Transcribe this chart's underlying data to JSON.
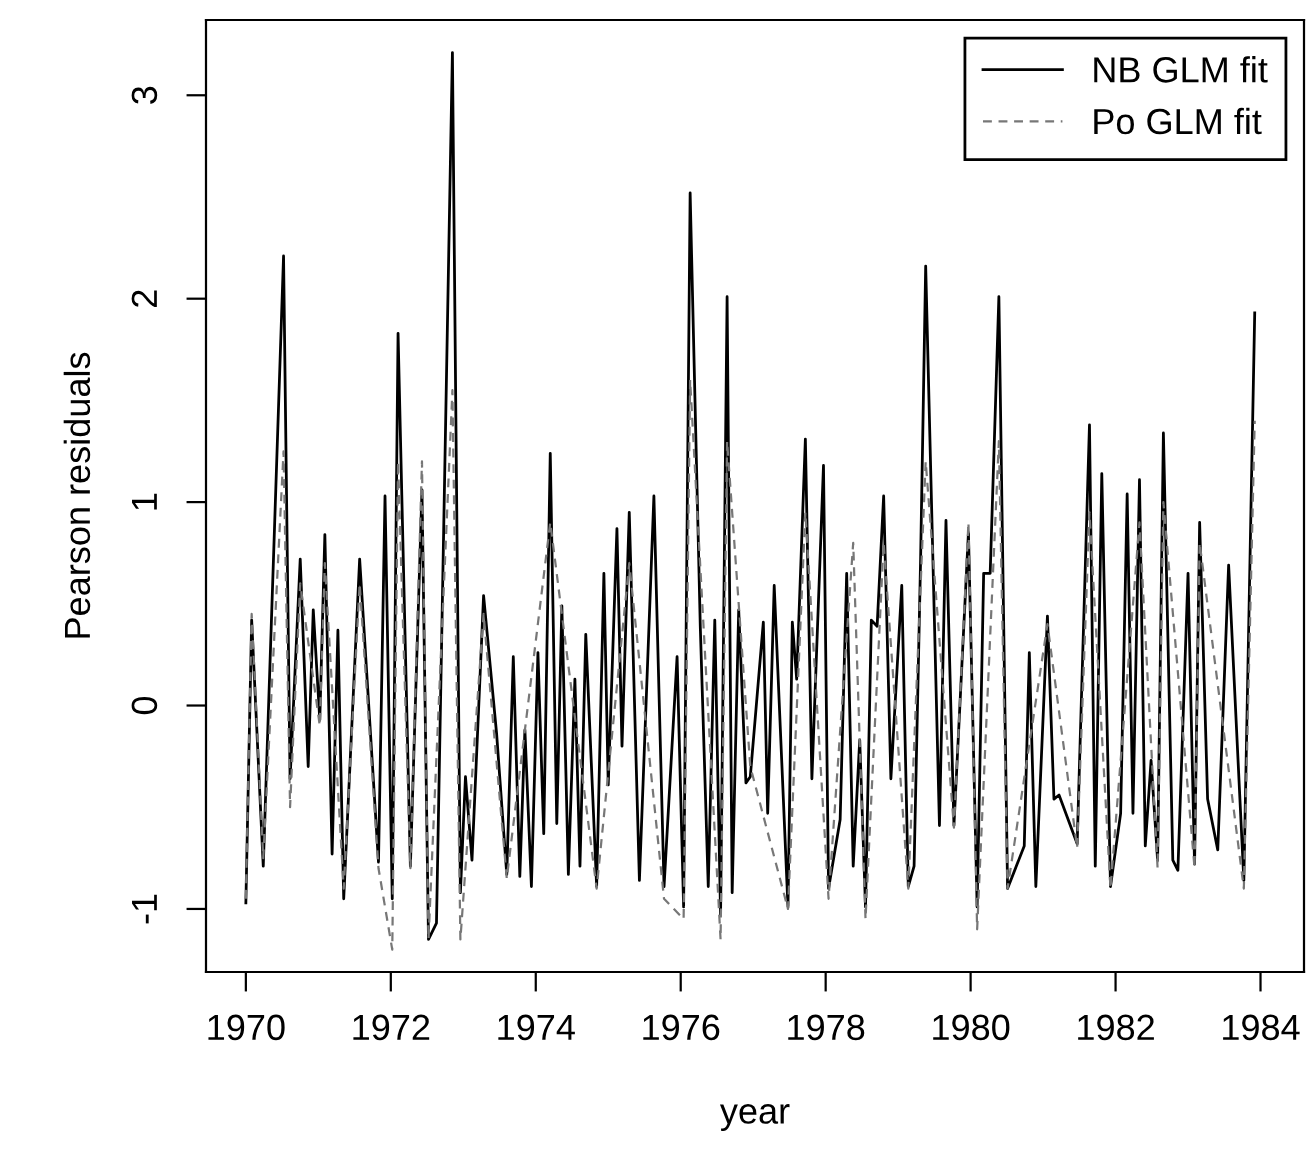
{
  "chart_data": {
    "type": "line",
    "xlabel": "year",
    "ylabel": "Pearson residuals",
    "xlim": [
      1969.45,
      1984.6
    ],
    "ylim": [
      -1.31,
      3.37
    ],
    "xticks": [
      1970,
      1972,
      1974,
      1976,
      1978,
      1980,
      1982,
      1984
    ],
    "yticks": [
      -1,
      0,
      1,
      2,
      3
    ],
    "grid": false,
    "legend": "top right",
    "marker": "none",
    "series": [
      {
        "name": "NB GLM fit",
        "color": "#000000",
        "line_style": "solid",
        "x": [
          1970.0,
          1970.08,
          1970.24,
          1970.52,
          1970.61,
          1970.75,
          1970.86,
          1970.93,
          1971.02,
          1971.09,
          1971.19,
          1971.27,
          1971.35,
          1971.57,
          1971.83,
          1971.92,
          1972.02,
          1972.1,
          1972.27,
          1972.43,
          1972.52,
          1972.63,
          1972.85,
          1972.96,
          1973.03,
          1973.12,
          1973.28,
          1973.46,
          1973.6,
          1973.69,
          1973.78,
          1973.85,
          1973.94,
          1974.03,
          1974.11,
          1974.2,
          1974.29,
          1974.36,
          1974.45,
          1974.54,
          1974.61,
          1974.69,
          1974.84,
          1974.94,
          1975.0,
          1975.12,
          1975.19,
          1975.29,
          1975.43,
          1975.63,
          1975.77,
          1975.95,
          1976.04,
          1976.13,
          1976.27,
          1976.38,
          1976.47,
          1976.55,
          1976.64,
          1976.71,
          1976.8,
          1976.9,
          1976.96,
          1977.14,
          1977.2,
          1977.29,
          1977.48,
          1977.54,
          1977.6,
          1977.72,
          1977.81,
          1977.97,
          1978.04,
          1978.2,
          1978.29,
          1978.38,
          1978.47,
          1978.55,
          1978.63,
          1978.71,
          1978.8,
          1978.9,
          1979.05,
          1979.14,
          1979.22,
          1979.31,
          1979.38,
          1979.57,
          1979.66,
          1979.77,
          1979.97,
          1980.09,
          1980.18,
          1980.27,
          1980.39,
          1980.51,
          1980.74,
          1980.81,
          1980.9,
          1981.06,
          1981.15,
          1981.22,
          1981.47,
          1981.64,
          1981.72,
          1981.81,
          1981.93,
          1982.07,
          1982.16,
          1982.24,
          1982.33,
          1982.41,
          1982.49,
          1982.58,
          1982.66,
          1982.79,
          1982.86,
          1983.0,
          1983.09,
          1983.16,
          1983.27,
          1983.41,
          1983.56,
          1983.77,
          1983.92
        ],
        "values": [
          -0.97,
          0.42,
          -0.79,
          2.21,
          -0.36,
          0.72,
          -0.3,
          0.47,
          -0.07,
          0.84,
          -0.73,
          0.37,
          -0.95,
          0.72,
          -0.77,
          1.03,
          -0.95,
          1.83,
          -0.79,
          1.06,
          -1.15,
          -1.07,
          3.21,
          -0.92,
          -0.35,
          -0.76,
          0.54,
          -0.14,
          -0.83,
          0.24,
          -0.84,
          -0.12,
          -0.89,
          0.26,
          -0.63,
          1.24,
          -0.58,
          0.49,
          -0.83,
          0.13,
          -0.79,
          0.35,
          -0.89,
          0.65,
          -0.39,
          0.87,
          -0.2,
          0.95,
          -0.86,
          1.03,
          -0.89,
          0.24,
          -0.99,
          2.52,
          0.39,
          -0.89,
          0.42,
          -1.03,
          2.01,
          -0.92,
          0.47,
          -0.38,
          -0.35,
          0.41,
          -0.53,
          0.59,
          -0.99,
          0.41,
          0.13,
          1.31,
          -0.36,
          1.18,
          -0.9,
          -0.56,
          0.65,
          -0.79,
          -0.17,
          -0.99,
          0.42,
          0.39,
          1.03,
          -0.36,
          0.59,
          -0.89,
          -0.79,
          0.72,
          2.16,
          -0.59,
          0.91,
          -0.59,
          0.85,
          -0.99,
          0.65,
          0.65,
          2.01,
          -0.9,
          -0.69,
          0.26,
          -0.89,
          0.44,
          -0.46,
          -0.44,
          -0.68,
          1.38,
          -0.79,
          1.14,
          -0.89,
          -0.53,
          1.04,
          -0.53,
          1.11,
          -0.69,
          -0.27,
          -0.76,
          1.34,
          -0.76,
          -0.81,
          0.65,
          -0.78,
          0.9,
          -0.46,
          -0.71,
          0.69,
          -0.86,
          1.93
        ]
      },
      {
        "name": "Po GLM fit",
        "color": "#777777",
        "line_style": "dashed",
        "x": [
          1970.0,
          1970.08,
          1970.24,
          1970.52,
          1970.61,
          1970.75,
          1971.02,
          1971.09,
          1971.35,
          1971.57,
          1971.83,
          1972.02,
          1972.1,
          1972.27,
          1972.43,
          1972.52,
          1972.85,
          1972.96,
          1973.28,
          1973.6,
          1974.2,
          1974.84,
          1975.29,
          1975.77,
          1976.04,
          1976.13,
          1976.55,
          1976.64,
          1976.96,
          1977.48,
          1977.72,
          1978.04,
          1978.38,
          1978.55,
          1978.8,
          1979.14,
          1979.38,
          1979.77,
          1979.97,
          1980.09,
          1980.39,
          1980.51,
          1981.06,
          1981.47,
          1981.64,
          1981.93,
          1982.33,
          1982.58,
          1982.66,
          1983.09,
          1983.16,
          1983.77,
          1983.92
        ],
        "values": [
          -0.95,
          0.45,
          -0.75,
          1.25,
          -0.5,
          0.6,
          -0.1,
          0.7,
          -0.9,
          0.6,
          -0.8,
          -1.2,
          1.2,
          -0.8,
          1.2,
          -1.15,
          1.55,
          -1.15,
          0.45,
          -0.85,
          0.9,
          -0.9,
          0.7,
          -0.95,
          -1.05,
          1.6,
          -1.15,
          1.3,
          -0.3,
          -1.0,
          0.95,
          -0.95,
          0.8,
          -1.05,
          0.8,
          -0.9,
          1.2,
          -0.6,
          0.9,
          -1.1,
          1.3,
          -0.9,
          0.4,
          -0.7,
          0.95,
          -0.9,
          0.9,
          -0.8,
          1.0,
          -0.8,
          0.8,
          -0.9,
          1.4
        ]
      }
    ]
  }
}
